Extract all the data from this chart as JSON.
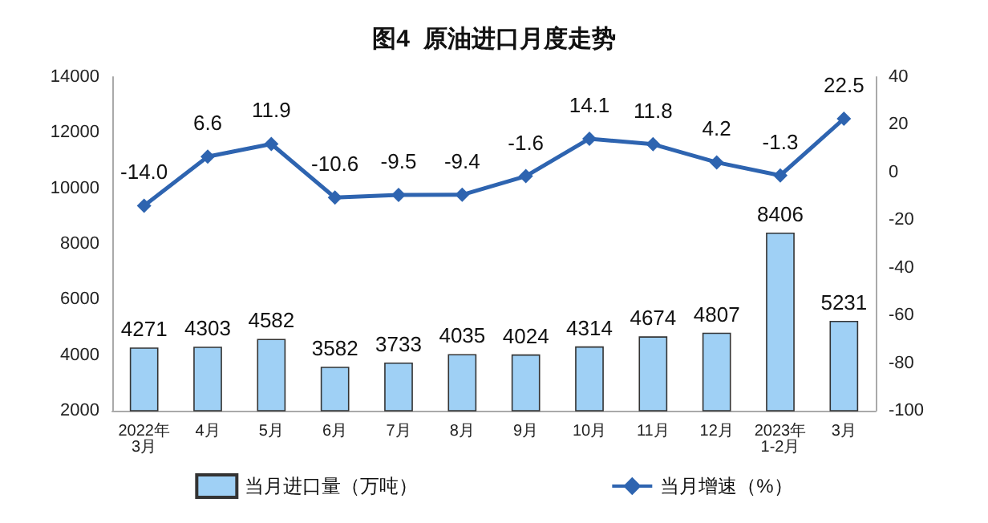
{
  "chart_data": {
    "type": "bar",
    "title": "图4  原油进口月度走势",
    "categories": [
      "2022年\n3月",
      "4月",
      "5月",
      "6月",
      "7月",
      "8月",
      "9月",
      "10月",
      "11月",
      "12月",
      "2023年\n1-2月",
      "3月"
    ],
    "series": [
      {
        "name": "当月进口量（万吨）",
        "color": "#9fd0f5",
        "values": [
          4271,
          4303,
          4582,
          3582,
          3733,
          4035,
          4024,
          4314,
          4674,
          4807,
          8406,
          5231
        ]
      },
      {
        "name": "当月增速（%）",
        "type": "line",
        "axis": "y2",
        "color": "#2e64b0",
        "marker": "diamond",
        "values": [
          -14.0,
          6.6,
          11.9,
          -10.6,
          -9.5,
          -9.4,
          -1.6,
          14.1,
          11.8,
          4.2,
          -1.3,
          22.5
        ],
        "value_labels": [
          "-14.0",
          "6.6",
          "11.9",
          "-10.6",
          "-9.5",
          "-9.4",
          "-1.6",
          "14.1",
          "11.8",
          "4.2",
          "-1.3",
          "22.5"
        ]
      }
    ],
    "data_labels": true,
    "ylim": [
      2000,
      14000
    ],
    "yticks": [
      2000,
      4000,
      6000,
      8000,
      10000,
      12000,
      14000
    ],
    "y2lim": [
      -100,
      40
    ],
    "y2ticks": [
      -100,
      -80,
      -60,
      -40,
      -20,
      0,
      20,
      40
    ],
    "grid": false,
    "legend": "bottom"
  }
}
